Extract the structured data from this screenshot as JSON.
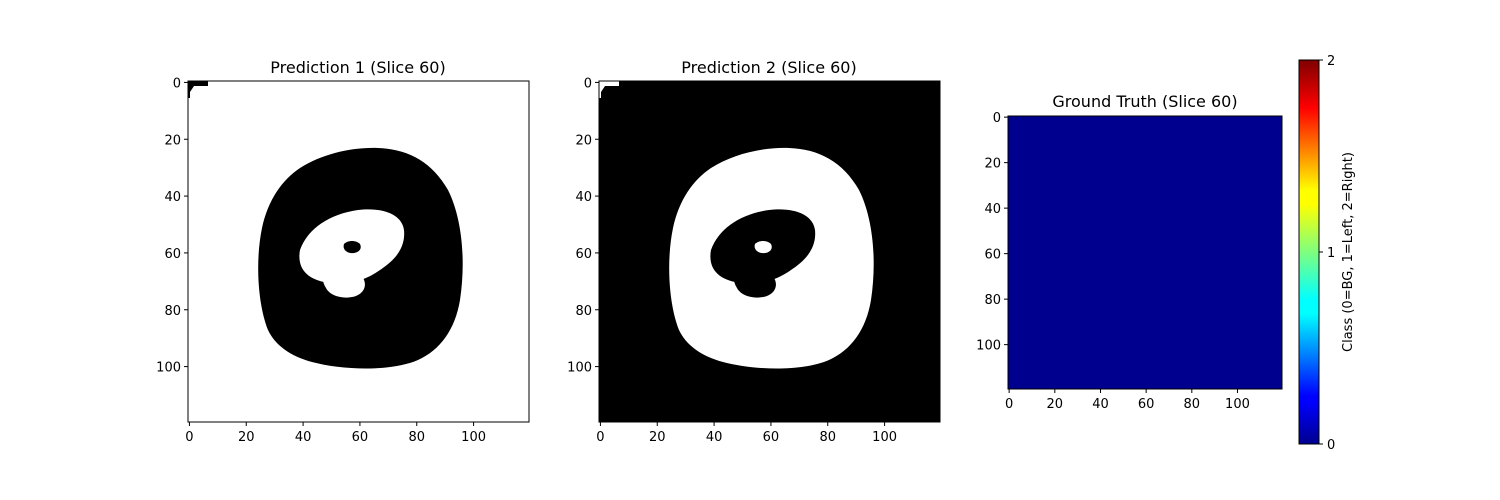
{
  "chart_data": [
    {
      "type": "heatmap",
      "title": "Prediction 1 (Slice 60)",
      "colormap": "grayscale (white = background)",
      "x_ticks": [
        "0",
        "20",
        "40",
        "60",
        "80",
        "100"
      ],
      "y_ticks": [
        "0",
        "20",
        "40",
        "60",
        "80",
        "100"
      ],
      "xlim": [
        0,
        120
      ],
      "ylim": [
        0,
        120
      ],
      "mask_values": {
        "background": 1,
        "object": 0
      },
      "object_region": {
        "description": "dark organ-shaped region with white interior voids",
        "extent_x": [
          22,
          97
        ],
        "extent_y": [
          21,
          101
        ]
      },
      "corner_artifact": {
        "extent_x": [
          0,
          8
        ],
        "extent_y": [
          0,
          7
        ]
      }
    },
    {
      "type": "heatmap",
      "title": "Prediction 2 (Slice 60)",
      "colormap": "grayscale (black = background)",
      "x_ticks": [
        "0",
        "20",
        "40",
        "60",
        "80",
        "100"
      ],
      "y_ticks": [
        "0",
        "20",
        "40",
        "60",
        "80",
        "100"
      ],
      "xlim": [
        0,
        120
      ],
      "ylim": [
        0,
        120
      ],
      "mask_values": {
        "background": 0,
        "object": 1
      },
      "object_region": {
        "description": "inverse of Prediction 1: white organ-shaped region with dark interior voids",
        "extent_x": [
          22,
          97
        ],
        "extent_y": [
          21,
          101
        ]
      },
      "corner_artifact": {
        "extent_x": [
          0,
          8
        ],
        "extent_y": [
          0,
          7
        ]
      }
    },
    {
      "type": "heatmap",
      "title": "Ground Truth (Slice 60)",
      "colormap": "jet",
      "uniform_value": 0,
      "uniform_color": "#00008f",
      "x_ticks": [
        "0",
        "20",
        "40",
        "60",
        "80",
        "100"
      ],
      "y_ticks": [
        "0",
        "20",
        "40",
        "60",
        "80",
        "100"
      ],
      "xlim": [
        0,
        120
      ],
      "ylim": [
        0,
        120
      ]
    }
  ],
  "colorbar": {
    "label": "Class (0=BG, 1=Left, 2=Right)",
    "ticks": [
      "0",
      "1",
      "2"
    ],
    "range": [
      0,
      2
    ],
    "colormap": "jet"
  },
  "colors": {
    "mask_dark": "#000000",
    "mask_light": "#ffffff",
    "gt_fill": "#00008f"
  }
}
